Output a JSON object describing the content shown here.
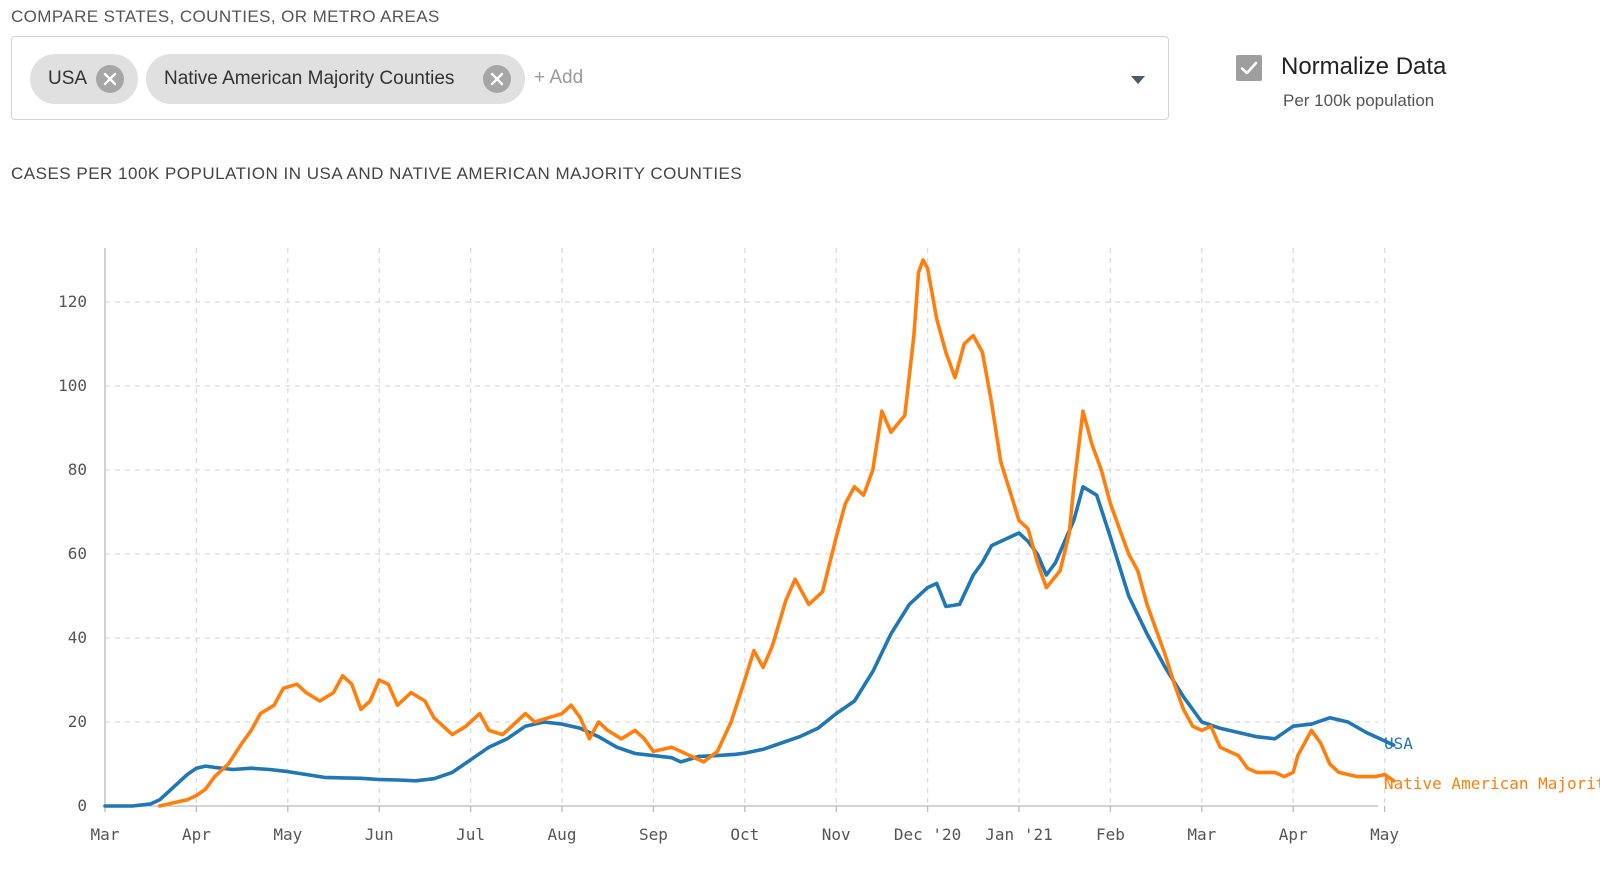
{
  "compare": {
    "label": "COMPARE STATES, COUNTIES, OR METRO AREAS",
    "chips": [
      "USA",
      "Native American Majority Counties"
    ],
    "add_placeholder": "+ Add"
  },
  "normalize": {
    "label": "Normalize Data",
    "sublabel": "Per 100k population",
    "checked": true
  },
  "chart_data": {
    "type": "line",
    "title": "CASES PER 100K POPULATION IN USA AND NATIVE AMERICAN MAJORITY COUNTIES",
    "xlabel": "",
    "ylabel": "",
    "ylim": [
      0,
      133
    ],
    "yticks": [
      0,
      20,
      40,
      60,
      80,
      100,
      120
    ],
    "xticks": [
      "Mar",
      "Apr",
      "May",
      "Jun",
      "Jul",
      "Aug",
      "Sep",
      "Oct",
      "Nov",
      "Dec '20",
      "Jan '21",
      "Feb",
      "Mar",
      "Apr",
      "May"
    ],
    "grid": true,
    "legend": "end-of-line labels",
    "series": [
      {
        "name": "USA",
        "color": "#1f77b4",
        "points": [
          [
            0,
            0
          ],
          [
            0.3,
            0
          ],
          [
            0.5,
            0.5
          ],
          [
            0.6,
            1.5
          ],
          [
            0.7,
            3.5
          ],
          [
            0.8,
            5.5
          ],
          [
            0.9,
            7.5
          ],
          [
            1.0,
            9
          ],
          [
            1.1,
            9.5
          ],
          [
            1.2,
            9.2
          ],
          [
            1.4,
            8.7
          ],
          [
            1.6,
            9
          ],
          [
            1.8,
            8.7
          ],
          [
            2.0,
            8.2
          ],
          [
            2.2,
            7.5
          ],
          [
            2.4,
            6.8
          ],
          [
            2.6,
            6.7
          ],
          [
            2.8,
            6.6
          ],
          [
            3.0,
            6.3
          ],
          [
            3.2,
            6.2
          ],
          [
            3.4,
            6.0
          ],
          [
            3.6,
            6.5
          ],
          [
            3.8,
            8
          ],
          [
            4.0,
            11
          ],
          [
            4.2,
            14
          ],
          [
            4.4,
            16
          ],
          [
            4.6,
            19
          ],
          [
            4.8,
            20
          ],
          [
            5.0,
            19.5
          ],
          [
            5.2,
            18.5
          ],
          [
            5.4,
            16.5
          ],
          [
            5.6,
            14
          ],
          [
            5.8,
            12.5
          ],
          [
            6.0,
            12
          ],
          [
            6.2,
            11.5
          ],
          [
            6.3,
            10.5
          ],
          [
            6.5,
            11.8
          ],
          [
            6.7,
            12
          ],
          [
            6.9,
            12.3
          ],
          [
            7.0,
            12.6
          ],
          [
            7.2,
            13.5
          ],
          [
            7.4,
            15
          ],
          [
            7.6,
            16.5
          ],
          [
            7.8,
            18.5
          ],
          [
            8.0,
            22
          ],
          [
            8.2,
            25
          ],
          [
            8.4,
            32
          ],
          [
            8.6,
            41
          ],
          [
            8.8,
            48
          ],
          [
            9.0,
            52
          ],
          [
            9.1,
            53
          ],
          [
            9.2,
            47.5
          ],
          [
            9.35,
            48
          ],
          [
            9.5,
            55
          ],
          [
            9.6,
            58
          ],
          [
            9.7,
            62
          ],
          [
            9.8,
            63
          ],
          [
            10.0,
            65
          ],
          [
            10.1,
            63
          ],
          [
            10.2,
            60
          ],
          [
            10.3,
            55
          ],
          [
            10.4,
            58
          ],
          [
            10.5,
            63
          ],
          [
            10.6,
            68
          ],
          [
            10.7,
            76
          ],
          [
            10.85,
            74
          ],
          [
            11.0,
            64
          ],
          [
            11.2,
            50
          ],
          [
            11.4,
            41
          ],
          [
            11.6,
            33
          ],
          [
            11.8,
            26
          ],
          [
            12.0,
            20
          ],
          [
            12.2,
            18.5
          ],
          [
            12.4,
            17.5
          ],
          [
            12.6,
            16.5
          ],
          [
            12.8,
            16
          ],
          [
            13.0,
            19
          ],
          [
            13.2,
            19.5
          ],
          [
            13.4,
            21
          ],
          [
            13.6,
            20
          ],
          [
            13.8,
            17.5
          ],
          [
            14.0,
            15.5
          ],
          [
            14.1,
            14.5
          ]
        ]
      },
      {
        "name": "Native American Majority Counties",
        "color": "#ff7f0e",
        "points": [
          [
            0.6,
            0
          ],
          [
            0.7,
            0.5
          ],
          [
            0.8,
            1
          ],
          [
            0.9,
            1.5
          ],
          [
            1.0,
            2.5
          ],
          [
            1.1,
            4
          ],
          [
            1.2,
            7
          ],
          [
            1.35,
            10
          ],
          [
            1.5,
            15
          ],
          [
            1.6,
            18
          ],
          [
            1.7,
            22
          ],
          [
            1.85,
            24
          ],
          [
            1.95,
            28
          ],
          [
            2.1,
            29
          ],
          [
            2.2,
            27
          ],
          [
            2.35,
            25
          ],
          [
            2.5,
            27
          ],
          [
            2.6,
            31
          ],
          [
            2.7,
            29
          ],
          [
            2.8,
            23
          ],
          [
            2.9,
            25
          ],
          [
            3.0,
            30
          ],
          [
            3.1,
            29
          ],
          [
            3.2,
            24
          ],
          [
            3.35,
            27
          ],
          [
            3.5,
            25
          ],
          [
            3.6,
            21
          ],
          [
            3.7,
            19
          ],
          [
            3.8,
            17
          ],
          [
            3.95,
            19
          ],
          [
            4.1,
            22
          ],
          [
            4.2,
            18
          ],
          [
            4.35,
            17
          ],
          [
            4.5,
            20
          ],
          [
            4.6,
            22
          ],
          [
            4.7,
            20
          ],
          [
            4.85,
            21
          ],
          [
            5.0,
            22
          ],
          [
            5.1,
            24
          ],
          [
            5.2,
            21
          ],
          [
            5.3,
            16
          ],
          [
            5.4,
            20
          ],
          [
            5.5,
            18
          ],
          [
            5.65,
            16
          ],
          [
            5.8,
            18
          ],
          [
            5.9,
            16
          ],
          [
            6.0,
            13
          ],
          [
            6.2,
            14
          ],
          [
            6.4,
            12
          ],
          [
            6.55,
            10.5
          ],
          [
            6.7,
            13
          ],
          [
            6.85,
            20
          ],
          [
            7.0,
            30
          ],
          [
            7.1,
            37
          ],
          [
            7.2,
            33
          ],
          [
            7.3,
            38
          ],
          [
            7.45,
            49
          ],
          [
            7.55,
            54
          ],
          [
            7.7,
            48
          ],
          [
            7.85,
            51
          ],
          [
            8.0,
            64
          ],
          [
            8.1,
            72
          ],
          [
            8.2,
            76
          ],
          [
            8.3,
            74
          ],
          [
            8.4,
            80
          ],
          [
            8.5,
            94
          ],
          [
            8.6,
            89
          ],
          [
            8.75,
            93
          ],
          [
            8.85,
            112
          ],
          [
            8.9,
            127
          ],
          [
            8.95,
            130
          ],
          [
            9.0,
            128
          ],
          [
            9.1,
            116
          ],
          [
            9.2,
            108
          ],
          [
            9.3,
            102
          ],
          [
            9.4,
            110
          ],
          [
            9.5,
            112
          ],
          [
            9.6,
            108
          ],
          [
            9.7,
            96
          ],
          [
            9.8,
            82
          ],
          [
            9.9,
            75
          ],
          [
            10.0,
            68
          ],
          [
            10.1,
            66
          ],
          [
            10.2,
            58
          ],
          [
            10.3,
            52
          ],
          [
            10.45,
            56
          ],
          [
            10.55,
            65
          ],
          [
            10.6,
            76
          ],
          [
            10.7,
            94
          ],
          [
            10.8,
            86
          ],
          [
            10.9,
            80
          ],
          [
            11.0,
            72
          ],
          [
            11.1,
            66
          ],
          [
            11.2,
            60
          ],
          [
            11.3,
            56
          ],
          [
            11.4,
            48
          ],
          [
            11.5,
            42
          ],
          [
            11.6,
            36
          ],
          [
            11.7,
            29
          ],
          [
            11.8,
            23
          ],
          [
            11.9,
            19
          ],
          [
            12.0,
            18
          ],
          [
            12.1,
            19
          ],
          [
            12.2,
            14
          ],
          [
            12.4,
            12
          ],
          [
            12.5,
            9
          ],
          [
            12.6,
            8
          ],
          [
            12.8,
            8
          ],
          [
            12.9,
            7
          ],
          [
            13.0,
            8
          ],
          [
            13.05,
            12
          ],
          [
            13.2,
            18
          ],
          [
            13.3,
            15
          ],
          [
            13.4,
            10
          ],
          [
            13.5,
            8
          ],
          [
            13.7,
            7
          ],
          [
            13.9,
            7
          ],
          [
            14.0,
            7.5
          ],
          [
            14.1,
            6
          ]
        ]
      }
    ]
  }
}
